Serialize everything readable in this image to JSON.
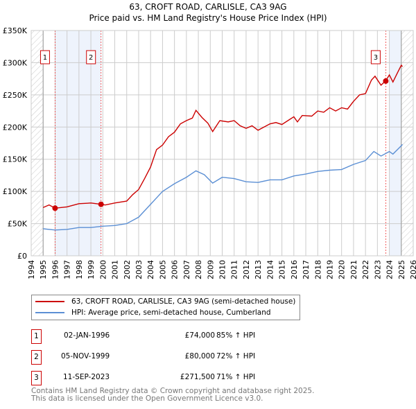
{
  "chart_data": {
    "type": "line",
    "title": "63, CROFT ROAD, CARLISLE, CA3 9AG",
    "subtitle": "Price paid vs. HM Land Registry's House Price Index (HPI)",
    "xlim": [
      1994,
      2026
    ],
    "ylim": [
      0,
      350000
    ],
    "x_ticks": [
      "1994",
      "1995",
      "1996",
      "1997",
      "1998",
      "1999",
      "2000",
      "2001",
      "2002",
      "2003",
      "2004",
      "2005",
      "2006",
      "2007",
      "2008",
      "2009",
      "2010",
      "2011",
      "2012",
      "2013",
      "2014",
      "2015",
      "2016",
      "2017",
      "2018",
      "2019",
      "2020",
      "2021",
      "2022",
      "2023",
      "2024",
      "2025",
      "2026"
    ],
    "y_ticks": [
      {
        "v": 0,
        "label": "£0"
      },
      {
        "v": 50000,
        "label": "£50K"
      },
      {
        "v": 100000,
        "label": "£100K"
      },
      {
        "v": 150000,
        "label": "£150K"
      },
      {
        "v": 200000,
        "label": "£200K"
      },
      {
        "v": 250000,
        "label": "£250K"
      },
      {
        "v": 300000,
        "label": "£300K"
      },
      {
        "v": 350000,
        "label": "£350K"
      }
    ],
    "grid": true,
    "series": [
      {
        "name": "63, CROFT ROAD, CARLISLE, CA3 9AG (semi-detached house)",
        "color": "#cc0000",
        "x": [
          1995.0,
          1995.5,
          1996.0,
          1997,
          1998,
          1999,
          1999.85,
          2000.2,
          2001,
          2002,
          2002.5,
          2003,
          2003.5,
          2004,
          2004.5,
          2005,
          2005.5,
          2006,
          2006.5,
          2007,
          2007.5,
          2007.8,
          2008.3,
          2008.8,
          2009.2,
          2009.8,
          2010.5,
          2011,
          2011.5,
          2012,
          2012.5,
          2013,
          2013.5,
          2014,
          2014.5,
          2015,
          2015.5,
          2016,
          2016.3,
          2016.7,
          2017.5,
          2018,
          2018.5,
          2019,
          2019.5,
          2020,
          2020.5,
          2021,
          2021.5,
          2022,
          2022.5,
          2022.8,
          2023.3,
          2023.7,
          2024,
          2024.3,
          2024.7,
          2025,
          2025.1
        ],
        "y": [
          75000,
          79000,
          74000,
          76000,
          81000,
          82000,
          80000,
          79000,
          82000,
          85000,
          95000,
          103000,
          120000,
          138000,
          165000,
          172000,
          185000,
          192000,
          205000,
          210000,
          214000,
          226000,
          215000,
          206000,
          193000,
          210000,
          208000,
          210000,
          202000,
          198000,
          202000,
          195000,
          200000,
          205000,
          207000,
          204000,
          210000,
          216000,
          208000,
          218000,
          217000,
          225000,
          223000,
          230000,
          225000,
          230000,
          228000,
          240000,
          250000,
          252000,
          273000,
          279000,
          265000,
          272000,
          281000,
          270000,
          285000,
          296000,
          294000
        ]
      },
      {
        "name": "HPI: Average price, semi-detached house, Cumberland",
        "color": "#5b8fd4",
        "x": [
          1995,
          1996,
          1997,
          1998,
          1999,
          2000,
          2001,
          2002,
          2003,
          2004,
          2004.5,
          2005,
          2006,
          2007,
          2007.8,
          2008.5,
          2009.2,
          2010,
          2011,
          2012,
          2013,
          2014,
          2015,
          2016,
          2017,
          2018,
          2019,
          2020,
          2021,
          2022,
          2022.7,
          2023.3,
          2024,
          2024.3,
          2025,
          2025.1
        ],
        "y": [
          42000,
          40000,
          41000,
          44000,
          44000,
          46000,
          47000,
          50000,
          60000,
          80000,
          90000,
          100000,
          112000,
          122000,
          132000,
          126000,
          113000,
          122000,
          120000,
          115000,
          114000,
          118000,
          118000,
          124000,
          127000,
          131000,
          133000,
          134000,
          142000,
          148000,
          162000,
          155000,
          162000,
          158000,
          171000,
          173000
        ]
      }
    ],
    "sales": [
      {
        "label": "1",
        "x": 1996.0,
        "date": "02-JAN-1996",
        "price": 74000,
        "price_text": "£74,000",
        "hpi": "85% ↑ HPI"
      },
      {
        "label": "2",
        "x": 1999.85,
        "date": "05-NOV-1999",
        "price": 80000,
        "price_text": "£80,000",
        "hpi": "72% ↑ HPI"
      },
      {
        "label": "3",
        "x": 2023.7,
        "date": "11-SEP-2023",
        "price": 271500,
        "price_text": "£271,500",
        "hpi": "71% ↑ HPI"
      }
    ],
    "shaded_ranges": [
      [
        1996.0,
        1999.85
      ],
      [
        2024.0,
        2025.0
      ]
    ],
    "hatched_ranges": [
      [
        1994,
        1995
      ],
      [
        2025,
        2026
      ]
    ],
    "legend_position": "below"
  },
  "footer": {
    "line1": "Contains HM Land Registry data © Crown copyright and database right 2025.",
    "line2": "This data is licensed under the Open Government Licence v3.0."
  }
}
